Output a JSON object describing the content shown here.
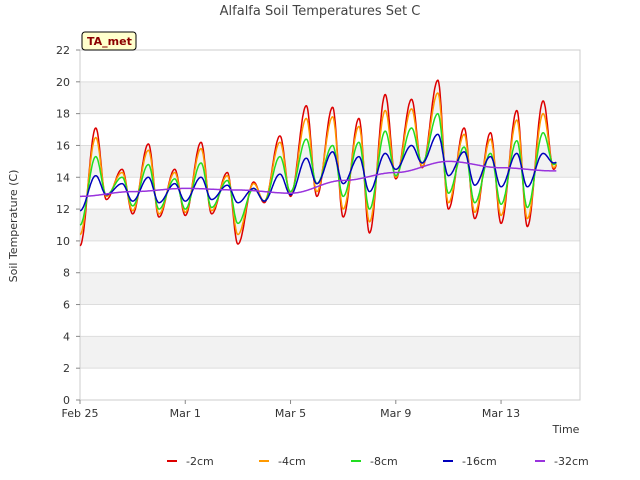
{
  "chart_data": {
    "type": "line",
    "title": "Alfalfa Soil Temperatures Set C",
    "xlabel": "Time",
    "ylabel": "Soil Temperature (C)",
    "ylim": [
      0,
      22
    ],
    "yticks": [
      0,
      2,
      4,
      6,
      8,
      10,
      12,
      14,
      16,
      18,
      20,
      22
    ],
    "xlim": [
      0,
      19
    ],
    "xticks": [
      {
        "label": "Feb 25",
        "day": 0
      },
      {
        "label": "Mar 1",
        "day": 4
      },
      {
        "label": "Mar 5",
        "day": 8
      },
      {
        "label": "Mar 9",
        "day": 12
      },
      {
        "label": "Mar 13",
        "day": 16
      }
    ],
    "grid": true,
    "banded_background": true,
    "legend_position": "bottom",
    "badge": {
      "text": "TA_met",
      "background": "#ffffcc",
      "text_color": "#8b0000"
    },
    "day_start": 0,
    "day_end": 18.1,
    "series": [
      {
        "name": "-2cm",
        "color": "#dd0000",
        "daily_min": [
          9.7,
          12.6,
          11.7,
          11.5,
          11.6,
          11.7,
          9.8,
          12.4,
          12.8,
          12.8,
          11.5,
          10.5,
          13.9,
          14.6,
          12.0,
          11.4,
          11.1,
          10.9,
          14.5
        ],
        "daily_max": [
          17.1,
          14.5,
          16.1,
          14.5,
          16.2,
          14.3,
          13.7,
          16.6,
          18.5,
          18.4,
          17.7,
          19.2,
          18.9,
          20.1,
          17.1,
          16.8,
          18.2,
          18.8
        ]
      },
      {
        "name": "-4cm",
        "color": "#ff9900",
        "daily_min": [
          10.4,
          12.8,
          11.9,
          11.7,
          11.8,
          11.9,
          10.4,
          12.5,
          12.9,
          13.1,
          12.0,
          11.2,
          14.0,
          14.7,
          12.4,
          11.8,
          11.6,
          11.4,
          14.6
        ],
        "daily_max": [
          16.5,
          14.3,
          15.7,
          14.3,
          15.8,
          14.1,
          13.6,
          16.2,
          17.7,
          17.8,
          17.2,
          18.2,
          18.3,
          19.3,
          16.7,
          16.4,
          17.6,
          18.0
        ]
      },
      {
        "name": "-8cm",
        "color": "#22dd22",
        "daily_min": [
          11.0,
          12.9,
          12.2,
          12.0,
          12.0,
          12.1,
          11.1,
          12.5,
          13.1,
          13.6,
          12.8,
          12.0,
          14.1,
          14.9,
          13.0,
          12.4,
          12.3,
          12.1,
          14.8
        ],
        "daily_max": [
          15.3,
          14.0,
          14.8,
          13.9,
          14.9,
          13.8,
          13.3,
          15.3,
          16.4,
          16.0,
          16.2,
          16.9,
          17.1,
          18.0,
          15.9,
          15.5,
          16.3,
          16.8
        ]
      },
      {
        "name": "-16cm",
        "color": "#0000bb",
        "daily_min": [
          11.9,
          12.9,
          12.5,
          12.4,
          12.5,
          12.6,
          12.4,
          12.5,
          12.9,
          13.6,
          13.6,
          13.1,
          14.5,
          14.9,
          14.1,
          13.5,
          13.4,
          13.4,
          14.9
        ],
        "daily_max": [
          14.1,
          13.6,
          14.0,
          13.6,
          14.0,
          13.5,
          13.3,
          14.2,
          15.2,
          15.6,
          15.3,
          15.5,
          16.0,
          16.7,
          15.6,
          15.3,
          15.5,
          15.5
        ]
      },
      {
        "name": "-32cm",
        "color": "#9933dd",
        "trend_day": [
          0,
          2,
          4,
          6,
          8,
          10,
          12,
          14,
          16,
          18
        ],
        "trend_value": [
          12.8,
          13.1,
          13.3,
          13.2,
          13.0,
          13.8,
          14.3,
          15.0,
          14.6,
          14.4
        ]
      }
    ]
  }
}
